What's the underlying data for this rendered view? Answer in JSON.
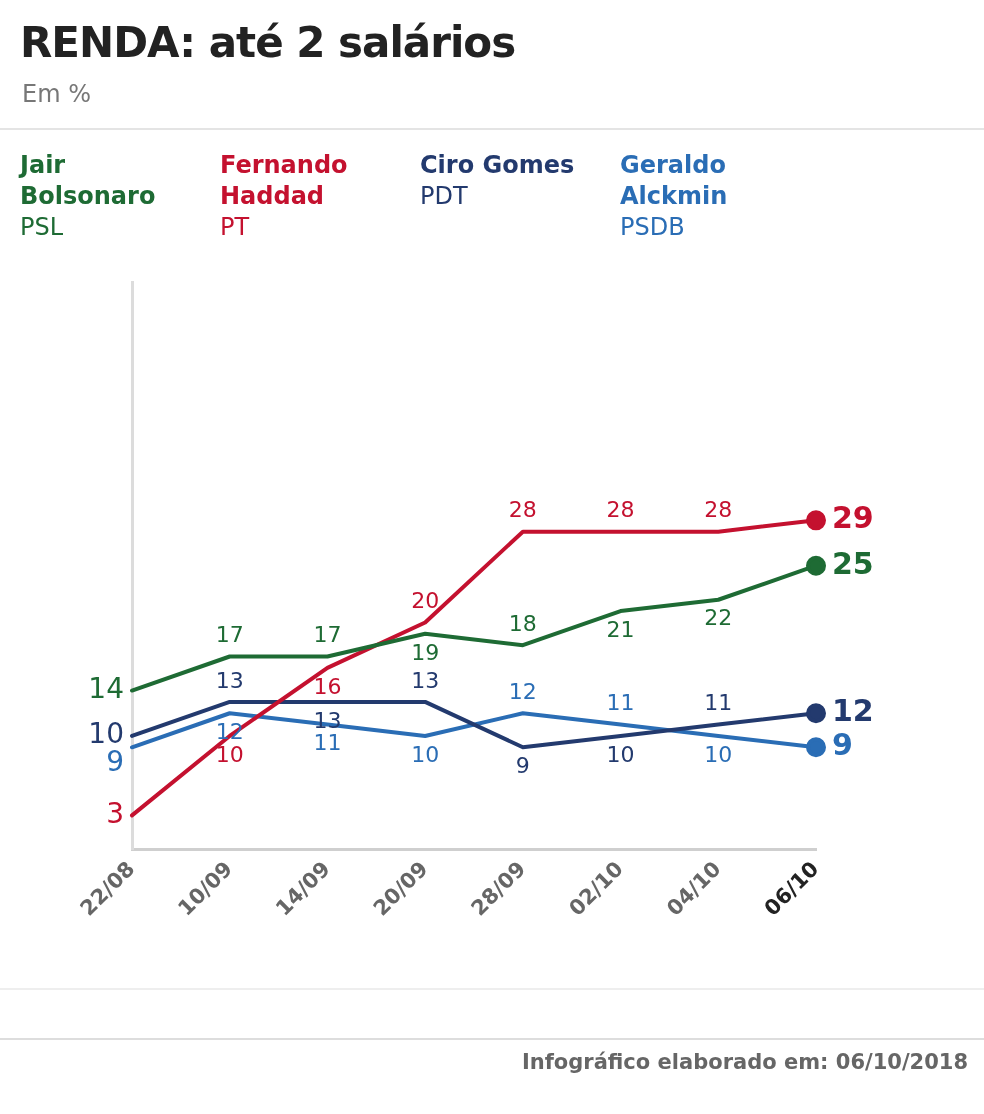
{
  "chart_data": {
    "type": "line",
    "title": "RENDA: até 2 salários",
    "subtitle": "Em %",
    "categories": [
      "22/08",
      "10/09",
      "14/09",
      "20/09",
      "28/09",
      "02/10",
      "04/10",
      "06/10"
    ],
    "series": [
      {
        "name": "Jair Bolsonaro PSL",
        "color": "#1e6b34",
        "values": [
          14,
          17,
          17,
          19,
          18,
          21,
          22,
          25
        ]
      },
      {
        "name": "Fernando Haddad PT",
        "color": "#c4112f",
        "values": [
          3,
          10,
          16,
          20,
          28,
          28,
          28,
          29
        ]
      },
      {
        "name": "Ciro Gomes PDT",
        "color": "#233a6e",
        "values": [
          10,
          13,
          13,
          13,
          9,
          10,
          11,
          12
        ]
      },
      {
        "name": "Geraldo Alckmin PSDB",
        "color": "#2a6db5",
        "values": [
          9,
          12,
          11,
          10,
          12,
          11,
          10,
          9
        ]
      }
    ],
    "ylim": [
      0,
      50
    ],
    "tick_labels": "x",
    "grid": false,
    "legend": "top left",
    "data_labels": true,
    "annotations": [
      "Infográfico elaborado em: 06/10/2018"
    ]
  }
}
